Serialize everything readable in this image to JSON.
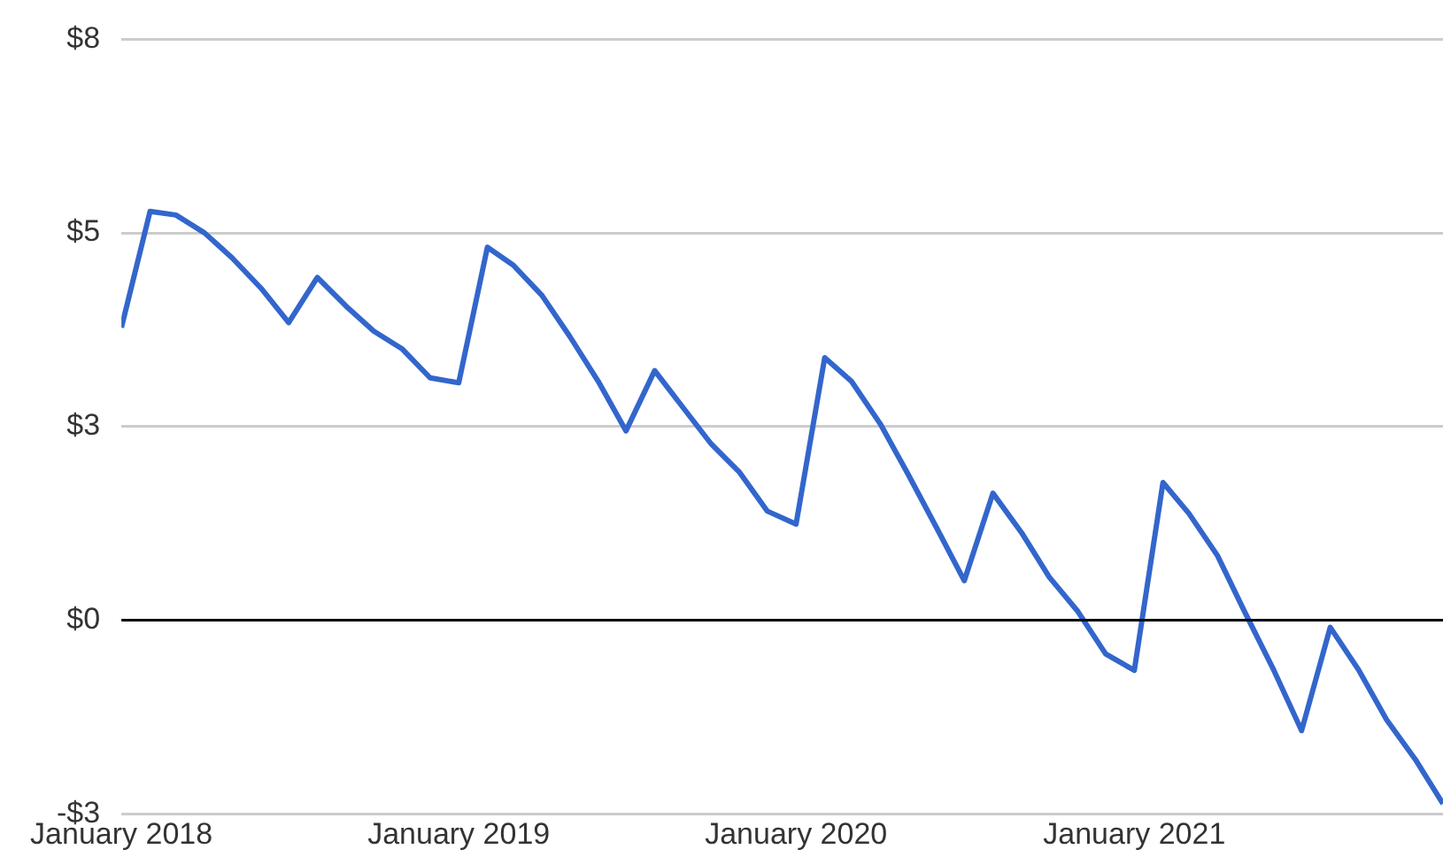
{
  "chart_data": {
    "type": "line",
    "x": [
      "2018-01",
      "2018-02",
      "2018-03",
      "2018-04",
      "2018-05",
      "2018-06",
      "2018-07",
      "2018-08",
      "2018-09",
      "2018-10",
      "2018-11",
      "2018-12",
      "2019-01",
      "2019-02",
      "2019-03",
      "2019-04",
      "2019-05",
      "2019-06",
      "2019-07",
      "2019-08",
      "2019-09",
      "2019-10",
      "2019-11",
      "2019-12",
      "2020-01",
      "2020-02",
      "2020-03",
      "2020-04",
      "2020-05",
      "2020-06",
      "2020-07",
      "2020-08",
      "2020-09",
      "2020-10",
      "2020-11",
      "2020-12",
      "2021-01",
      "2021-02",
      "2021-03",
      "2021-04",
      "2021-05",
      "2021-06",
      "2021-07",
      "2021-08",
      "2021-09",
      "2021-10",
      "2021-11",
      "2021-12"
    ],
    "series": [
      {
        "color": "#3366cc",
        "values": [
          4.08,
          5.7,
          5.65,
          5.4,
          5.05,
          4.63,
          4.15,
          4.78,
          4.38,
          4.03,
          3.78,
          3.38,
          3.31,
          5.2,
          4.95,
          4.53,
          3.96,
          3.33,
          2.64,
          3.48,
          2.96,
          2.46,
          2.06,
          1.52,
          1.34,
          3.66,
          3.33,
          2.74,
          2.04,
          1.29,
          0.55,
          1.77,
          1.22,
          0.6,
          0.12,
          -0.47,
          -0.7,
          1.92,
          1.49,
          0.9,
          0.1,
          -0.7,
          -1.54,
          -0.1,
          -0.7,
          -1.39,
          -1.94,
          -2.56
        ]
      }
    ],
    "xlim": [
      "2018-01",
      "2021-12"
    ],
    "xticks": [
      {
        "value": "2018-01",
        "label": "January 2018"
      },
      {
        "value": "2019-01",
        "label": "January 2019"
      },
      {
        "value": "2020-01",
        "label": "January 2020"
      },
      {
        "value": "2021-01",
        "label": "January 2021"
      }
    ],
    "ylim": [
      -2.7,
      8.1
    ],
    "yticks": [
      {
        "value": -2.7,
        "label": "-$3"
      },
      {
        "value": 0,
        "label": "$0"
      },
      {
        "value": 2.7,
        "label": "$3"
      },
      {
        "value": 5.4,
        "label": "$5"
      },
      {
        "value": 8.1,
        "label": "$8"
      }
    ],
    "grid": "y",
    "marker": "none",
    "line_style": "solid",
    "legend": false,
    "ref_lines": [
      {
        "axis": "y",
        "value": 0,
        "color": "#000000"
      }
    ]
  }
}
